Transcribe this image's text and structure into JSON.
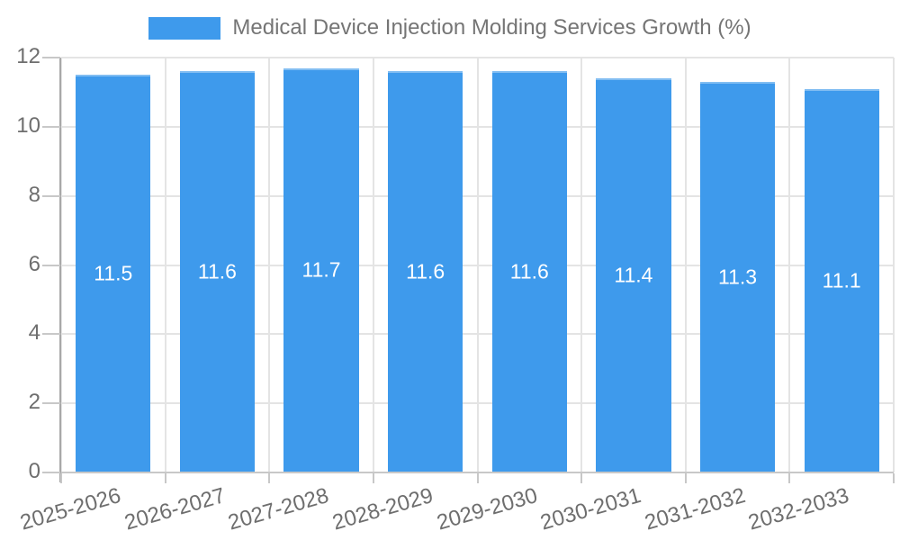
{
  "chart_data": {
    "type": "bar",
    "title": "Medical Device Injection Molding Services Growth (%)",
    "legend_position": "top",
    "series": [
      {
        "name": "Medical Device Injection Molding Services Growth (%)",
        "values": [
          11.5,
          11.6,
          11.7,
          11.6,
          11.6,
          11.4,
          11.3,
          11.1
        ]
      }
    ],
    "data_labels": [
      "11.5",
      "11.6",
      "11.7",
      "11.6",
      "11.6",
      "11.4",
      "11.3",
      "11.1"
    ],
    "categories": [
      "2025-2026",
      "2026-2027",
      "2027-2028",
      "2028-2029",
      "2029-2030",
      "2030-2031",
      "2031-2032",
      "2032-2033"
    ],
    "xlabel": "",
    "ylabel": "",
    "ylim": [
      0,
      12
    ],
    "yticks": [
      0,
      2,
      4,
      6,
      8,
      10,
      12
    ],
    "grid": true,
    "x_label_rotation_deg": -16,
    "colors": {
      "bar_fill": "#3E9AEC",
      "bar_edge_highlight": "rgba(255,255,255,0.35)",
      "bar_label_text": "#FFFFFF",
      "legend_text": "#757575",
      "axis_label_text": "#6E6E6E",
      "gridline": "#E4E4E4",
      "y_axis_line": "#A8A8A8",
      "x_axis_line": "#C8C8C8",
      "tick_mark": "#C8C8C8",
      "background": "#FFFFFF"
    }
  }
}
